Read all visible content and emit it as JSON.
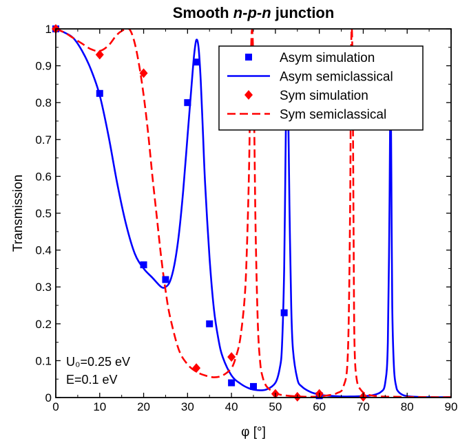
{
  "chart_data": {
    "type": "line",
    "title_parts": [
      {
        "text": "Smooth ",
        "italic": false
      },
      {
        "text": "n-p-n",
        "italic": true
      },
      {
        "text": " junction",
        "italic": false
      }
    ],
    "title": "Smooth n-p-n junction",
    "xlabel": "φ [°]",
    "ylabel": "Transmission",
    "xlim": [
      0,
      90
    ],
    "ylim": [
      0,
      1
    ],
    "xticks": [
      "0",
      "10",
      "20",
      "30",
      "40",
      "50",
      "60",
      "70",
      "80",
      "90"
    ],
    "yticks": [
      "0",
      "0.1",
      "0.2",
      "0.3",
      "0.4",
      "0.5",
      "0.6",
      "0.7",
      "0.8",
      "0.9",
      "1"
    ],
    "legend_position": "top-right",
    "annotations": [
      "U₀=0.25 eV",
      "E=0.1 eV"
    ],
    "colors": {
      "asym": "#0000ff",
      "sym": "#ff0000"
    },
    "series": [
      {
        "name": "Asym simulation",
        "kind": "scatter",
        "marker": "square",
        "color": "#0000ff",
        "x": [
          0,
          10,
          20,
          25,
          30,
          32,
          35,
          40,
          45,
          52,
          60
        ],
        "y": [
          1.0,
          0.825,
          0.36,
          0.32,
          0.8,
          0.91,
          0.2,
          0.04,
          0.03,
          0.23,
          0.005
        ]
      },
      {
        "name": "Asym semiclassical",
        "kind": "line",
        "dash": "solid",
        "color": "#0000ff",
        "x": [
          0,
          2,
          4,
          6,
          8,
          10,
          12,
          14,
          16,
          18,
          20,
          22,
          24,
          25,
          26,
          27,
          28,
          29,
          30,
          31,
          31.5,
          32,
          32.5,
          33,
          33.5,
          34,
          35,
          36,
          37,
          38,
          40,
          42,
          44,
          46,
          48,
          50,
          51,
          51.5,
          52,
          52.3,
          52.6,
          52.9,
          53.2,
          53.6,
          54,
          55,
          56,
          58,
          60,
          62,
          65,
          68,
          70,
          72,
          74,
          75,
          75.6,
          76,
          76.2,
          76.4,
          76.6,
          77,
          77.5,
          78,
          79,
          80,
          82,
          85,
          90
        ],
        "y": [
          1.0,
          0.99,
          0.975,
          0.94,
          0.89,
          0.82,
          0.71,
          0.58,
          0.47,
          0.39,
          0.35,
          0.325,
          0.3,
          0.3,
          0.315,
          0.36,
          0.44,
          0.56,
          0.71,
          0.86,
          0.93,
          0.97,
          0.95,
          0.86,
          0.72,
          0.58,
          0.38,
          0.24,
          0.16,
          0.11,
          0.06,
          0.038,
          0.025,
          0.02,
          0.022,
          0.04,
          0.08,
          0.14,
          0.35,
          0.65,
          0.9,
          0.8,
          0.52,
          0.25,
          0.13,
          0.05,
          0.03,
          0.015,
          0.008,
          0.005,
          0.003,
          0.003,
          0.004,
          0.006,
          0.015,
          0.04,
          0.15,
          0.55,
          0.88,
          0.6,
          0.25,
          0.08,
          0.03,
          0.016,
          0.007,
          0.004,
          0.002,
          0.001,
          0.001
        ]
      },
      {
        "name": "Sym simulation",
        "kind": "scatter",
        "marker": "diamond",
        "color": "#ff0000",
        "x": [
          0,
          10,
          20,
          32,
          40,
          50,
          55,
          60,
          70
        ],
        "y": [
          1.0,
          0.93,
          0.88,
          0.08,
          0.11,
          0.01,
          0.002,
          0.01,
          0.002
        ]
      },
      {
        "name": "Sym semiclassical",
        "kind": "line",
        "dash": "dashed",
        "color": "#ff0000",
        "x": [
          0,
          2,
          4,
          6,
          8,
          10,
          12,
          14,
          16,
          17,
          18,
          19,
          20,
          21,
          22,
          23,
          24,
          25,
          26,
          28,
          30,
          32,
          34,
          36,
          38,
          40,
          41,
          42,
          43,
          43.5,
          44,
          44.3,
          44.6,
          44.9,
          45.2,
          45.5,
          46,
          46.5,
          47,
          48,
          50,
          52,
          55,
          58,
          60,
          62,
          64,
          65.5,
          66.5,
          67,
          67.2,
          67.4,
          67.6,
          67.8,
          68,
          68.5,
          69.5,
          71,
          74,
          78,
          85,
          90
        ],
        "y": [
          1.0,
          0.99,
          0.975,
          0.96,
          0.945,
          0.94,
          0.955,
          0.985,
          1.0,
          0.995,
          0.96,
          0.9,
          0.82,
          0.72,
          0.6,
          0.49,
          0.38,
          0.29,
          0.22,
          0.13,
          0.09,
          0.07,
          0.06,
          0.055,
          0.06,
          0.08,
          0.11,
          0.16,
          0.27,
          0.4,
          0.62,
          0.85,
          0.99,
          0.95,
          0.72,
          0.45,
          0.2,
          0.1,
          0.06,
          0.03,
          0.012,
          0.006,
          0.003,
          0.002,
          0.003,
          0.006,
          0.012,
          0.03,
          0.12,
          0.5,
          0.9,
          1.0,
          0.85,
          0.45,
          0.15,
          0.05,
          0.02,
          0.008,
          0.003,
          0.002,
          0.001,
          0.001
        ]
      }
    ]
  }
}
